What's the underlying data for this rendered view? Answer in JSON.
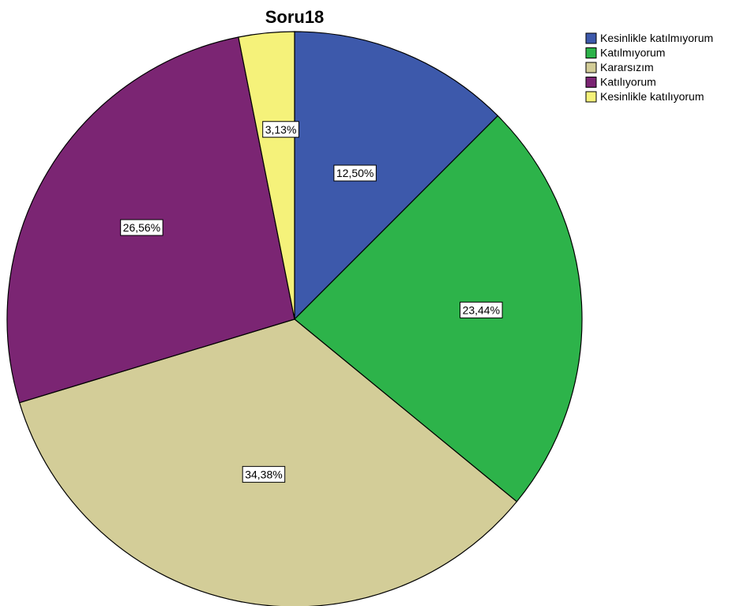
{
  "chart_data": {
    "type": "pie",
    "title": "Soru18",
    "categories": [
      "Kesinlikle katılmıyorum",
      "Katılmıyorum",
      "Kararsızım",
      "Katılıyorum",
      "Kesinlikle katılıyorum"
    ],
    "values": [
      12.5,
      23.44,
      34.38,
      26.56,
      3.13
    ],
    "data_labels": [
      "12,50%",
      "23,44%",
      "34,38%",
      "26,56%",
      "3,13%"
    ],
    "colors": [
      "#3d59ab",
      "#2db34a",
      "#d3cd98",
      "#7b2573",
      "#f5f27a"
    ],
    "start_angle": "top",
    "direction": "clockwise",
    "legend": "top-right"
  }
}
